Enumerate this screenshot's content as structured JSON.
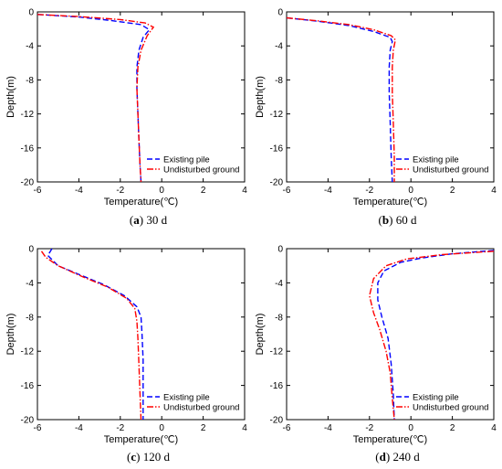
{
  "chart_data": [
    {
      "type": "line",
      "caption_letter": "a",
      "caption_text": "30 d",
      "xlabel": "Temperature(℃)",
      "ylabel": "Depth(m)",
      "xlim": [
        -6,
        4
      ],
      "ylim": [
        0,
        -20
      ],
      "xticks": [
        -6,
        -4,
        -2,
        0,
        2,
        4
      ],
      "yticks": [
        0,
        -4,
        -8,
        -12,
        -16,
        -20
      ],
      "legend_position": "bottom-right",
      "series": [
        {
          "name": "Existing pile",
          "color": "#0000ff",
          "dash": "dashed",
          "x": [
            -6.0,
            -4.0,
            -2.5,
            -1.0,
            -0.6,
            -0.9,
            -1.1,
            -1.2,
            -1.2,
            -1.15,
            -1.1,
            -1.05,
            -1.0
          ],
          "y": [
            -0.3,
            -0.6,
            -1.0,
            -1.5,
            -2.1,
            -3.0,
            -4.5,
            -6.5,
            -9.0,
            -12.0,
            -15.0,
            -18.0,
            -20.0
          ]
        },
        {
          "name": "Undisturbed ground",
          "color": "#ff0000",
          "dash": "dashdot",
          "x": [
            -6.0,
            -4.0,
            -2.0,
            -0.8,
            -0.4,
            -0.7,
            -1.0,
            -1.15,
            -1.2,
            -1.15,
            -1.1,
            -1.05,
            -1.0
          ],
          "y": [
            -0.3,
            -0.55,
            -0.9,
            -1.3,
            -1.8,
            -2.8,
            -4.5,
            -6.5,
            -9.0,
            -12.0,
            -15.0,
            -18.0,
            -20.0
          ]
        }
      ]
    },
    {
      "type": "line",
      "caption_letter": "b",
      "caption_text": "60 d",
      "xlabel": "Temperature(℃)",
      "ylabel": "Depth(m)",
      "xlim": [
        -6,
        4
      ],
      "ylim": [
        0,
        -20
      ],
      "xticks": [
        -6,
        -4,
        -2,
        0,
        2,
        4
      ],
      "yticks": [
        0,
        -4,
        -8,
        -12,
        -16,
        -20
      ],
      "legend_position": "bottom-right",
      "series": [
        {
          "name": "Existing pile",
          "color": "#0000ff",
          "dash": "dashed",
          "x": [
            -6.0,
            -4.5,
            -3.0,
            -1.8,
            -1.0,
            -0.9,
            -1.0,
            -1.05,
            -1.05,
            -1.0,
            -0.95,
            -0.9
          ],
          "y": [
            -0.7,
            -1.1,
            -1.6,
            -2.3,
            -3.0,
            -3.5,
            -4.5,
            -6.5,
            -9.5,
            -13.0,
            -17.0,
            -20.0
          ]
        },
        {
          "name": "Undisturbed ground",
          "color": "#ff0000",
          "dash": "dashdot",
          "x": [
            -6.0,
            -4.5,
            -3.0,
            -1.8,
            -0.95,
            -0.75,
            -0.85,
            -0.9,
            -0.9,
            -0.85,
            -0.8,
            -0.8
          ],
          "y": [
            -0.7,
            -1.05,
            -1.5,
            -2.1,
            -2.8,
            -3.3,
            -4.5,
            -6.5,
            -9.5,
            -13.0,
            -17.0,
            -20.0
          ]
        }
      ]
    },
    {
      "type": "line",
      "caption_letter": "c",
      "caption_text": "120 d",
      "xlabel": "Temperature(℃)",
      "ylabel": "Depth(m)",
      "xlim": [
        -6,
        4
      ],
      "ylim": [
        0,
        -20
      ],
      "xticks": [
        -6,
        -4,
        -2,
        0,
        2,
        4
      ],
      "yticks": [
        0,
        -4,
        -8,
        -12,
        -16,
        -20
      ],
      "legend_position": "bottom-right",
      "series": [
        {
          "name": "Existing pile",
          "color": "#0000ff",
          "dash": "dashed",
          "x": [
            -5.3,
            -5.5,
            -5.0,
            -4.0,
            -2.8,
            -1.8,
            -1.2,
            -1.0,
            -0.95,
            -0.9,
            -0.9,
            -0.9
          ],
          "y": [
            0.0,
            -0.8,
            -2.0,
            -3.0,
            -4.2,
            -5.5,
            -6.8,
            -8.0,
            -10.0,
            -13.0,
            -17.0,
            -20.0
          ]
        },
        {
          "name": "Undisturbed ground",
          "color": "#ff0000",
          "dash": "dashdot",
          "x": [
            -5.8,
            -5.6,
            -5.0,
            -3.8,
            -2.6,
            -1.7,
            -1.3,
            -1.2,
            -1.15,
            -1.1,
            -1.05,
            -1.0
          ],
          "y": [
            -0.3,
            -1.0,
            -2.0,
            -3.3,
            -4.5,
            -5.8,
            -7.0,
            -8.5,
            -10.5,
            -13.5,
            -17.0,
            -20.0
          ]
        }
      ]
    },
    {
      "type": "line",
      "caption_letter": "d",
      "caption_text": "240 d",
      "xlabel": "Temperature(℃)",
      "ylabel": "Depth(m)",
      "xlim": [
        -6,
        4
      ],
      "ylim": [
        0,
        -20
      ],
      "xticks": [
        -6,
        -4,
        -2,
        0,
        2,
        4
      ],
      "yticks": [
        0,
        -4,
        -8,
        -12,
        -16,
        -20
      ],
      "legend_position": "bottom-right",
      "series": [
        {
          "name": "Existing pile",
          "color": "#0000ff",
          "dash": "dashed",
          "x": [
            4.0,
            2.0,
            0.5,
            -0.5,
            -1.3,
            -1.6,
            -1.6,
            -1.4,
            -1.1,
            -0.95,
            -0.85,
            -0.8
          ],
          "y": [
            -0.2,
            -0.6,
            -1.1,
            -1.6,
            -2.6,
            -4.0,
            -6.0,
            -8.0,
            -10.5,
            -13.5,
            -17.0,
            -20.0
          ]
        },
        {
          "name": "Undisturbed ground",
          "color": "#ff0000",
          "dash": "dashdot",
          "x": [
            4.0,
            1.5,
            -0.2,
            -1.2,
            -1.8,
            -2.0,
            -1.8,
            -1.5,
            -1.2,
            -1.0,
            -0.9,
            -0.8
          ],
          "y": [
            -0.3,
            -0.7,
            -1.2,
            -2.0,
            -3.5,
            -5.5,
            -7.5,
            -9.5,
            -12.0,
            -14.5,
            -17.5,
            -20.0
          ]
        }
      ]
    }
  ]
}
